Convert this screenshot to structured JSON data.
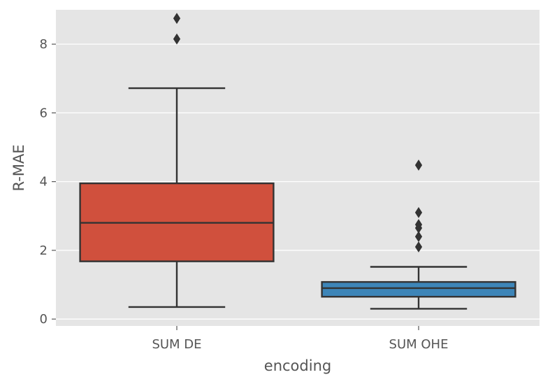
{
  "chart_data": {
    "type": "box",
    "title": "",
    "xlabel": "encoding",
    "ylabel": "R-MAE",
    "ylim": [
      -0.2,
      9.0
    ],
    "yticks": [
      0,
      2,
      4,
      6,
      8
    ],
    "ytick_labels": [
      "0",
      "2",
      "4",
      "6",
      "8"
    ],
    "grid": true,
    "categories": [
      "SUM DE",
      "SUM OHE"
    ],
    "boxes": [
      {
        "category": "SUM DE",
        "color": "#d0503d",
        "whisker_low": 0.35,
        "q1": 1.68,
        "median": 2.8,
        "q3": 3.95,
        "whisker_high": 6.72,
        "outliers": [
          8.15,
          8.75
        ]
      },
      {
        "category": "SUM OHE",
        "color": "#3d85b8",
        "whisker_low": 0.3,
        "q1": 0.65,
        "median": 0.9,
        "q3": 1.08,
        "whisker_high": 1.52,
        "outliers": [
          2.1,
          2.4,
          2.65,
          2.75,
          3.1,
          4.48
        ]
      }
    ],
    "colors": {
      "background": "#e5e5e5",
      "grid": "#ffffff",
      "line": "#333333",
      "text": "#555555"
    }
  }
}
